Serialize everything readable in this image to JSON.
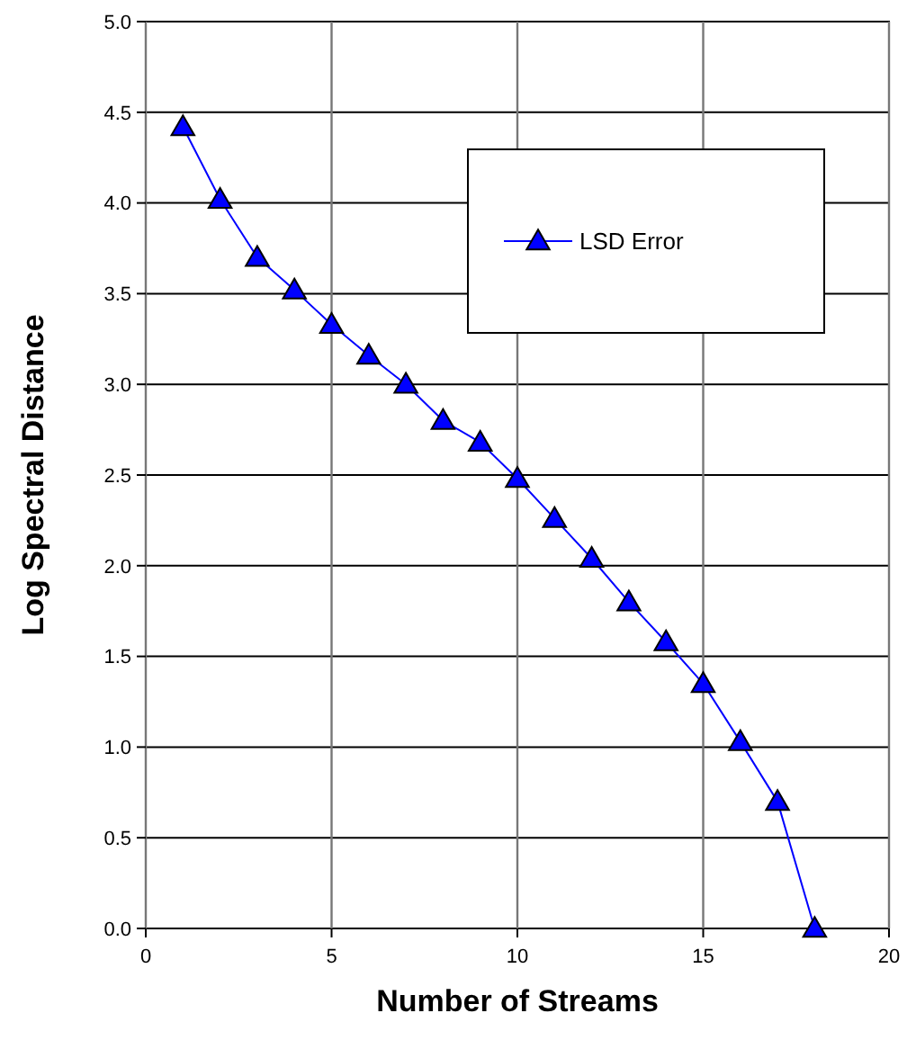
{
  "chart_data": {
    "type": "line",
    "xlabel": "Number of Streams",
    "ylabel": "Log Spectral Distance",
    "x": [
      1,
      2,
      3,
      4,
      5,
      6,
      7,
      8,
      9,
      10,
      11,
      12,
      13,
      14,
      15,
      16,
      17,
      18
    ],
    "series": [
      {
        "name": "LSD Error",
        "color": "#0000ff",
        "values": [
          4.42,
          4.02,
          3.7,
          3.52,
          3.33,
          3.16,
          3.0,
          2.8,
          2.68,
          2.48,
          2.26,
          2.04,
          1.8,
          1.58,
          1.35,
          1.03,
          0.7,
          0.0
        ]
      }
    ],
    "xlim": [
      0,
      20
    ],
    "xticks": [
      0,
      5,
      10,
      15,
      20
    ],
    "ylim": [
      0,
      5
    ],
    "yticks": [
      {
        "value": 0,
        "label": "0.0"
      },
      {
        "value": 0.5,
        "label": "0.5"
      },
      {
        "value": 1,
        "label": "1.0"
      },
      {
        "value": 1.5,
        "label": "1.5"
      },
      {
        "value": 2,
        "label": "2.0"
      },
      {
        "value": 2.5,
        "label": "2.5"
      },
      {
        "value": 3,
        "label": "3.0"
      },
      {
        "value": 3.5,
        "label": "3.5"
      },
      {
        "value": 4,
        "label": "4.0"
      },
      {
        "value": 4.5,
        "label": "4.5"
      },
      {
        "value": 5,
        "label": "5.0"
      }
    ],
    "grid": true,
    "legend": "top right",
    "marker": "triangle",
    "line_style": "solid"
  }
}
